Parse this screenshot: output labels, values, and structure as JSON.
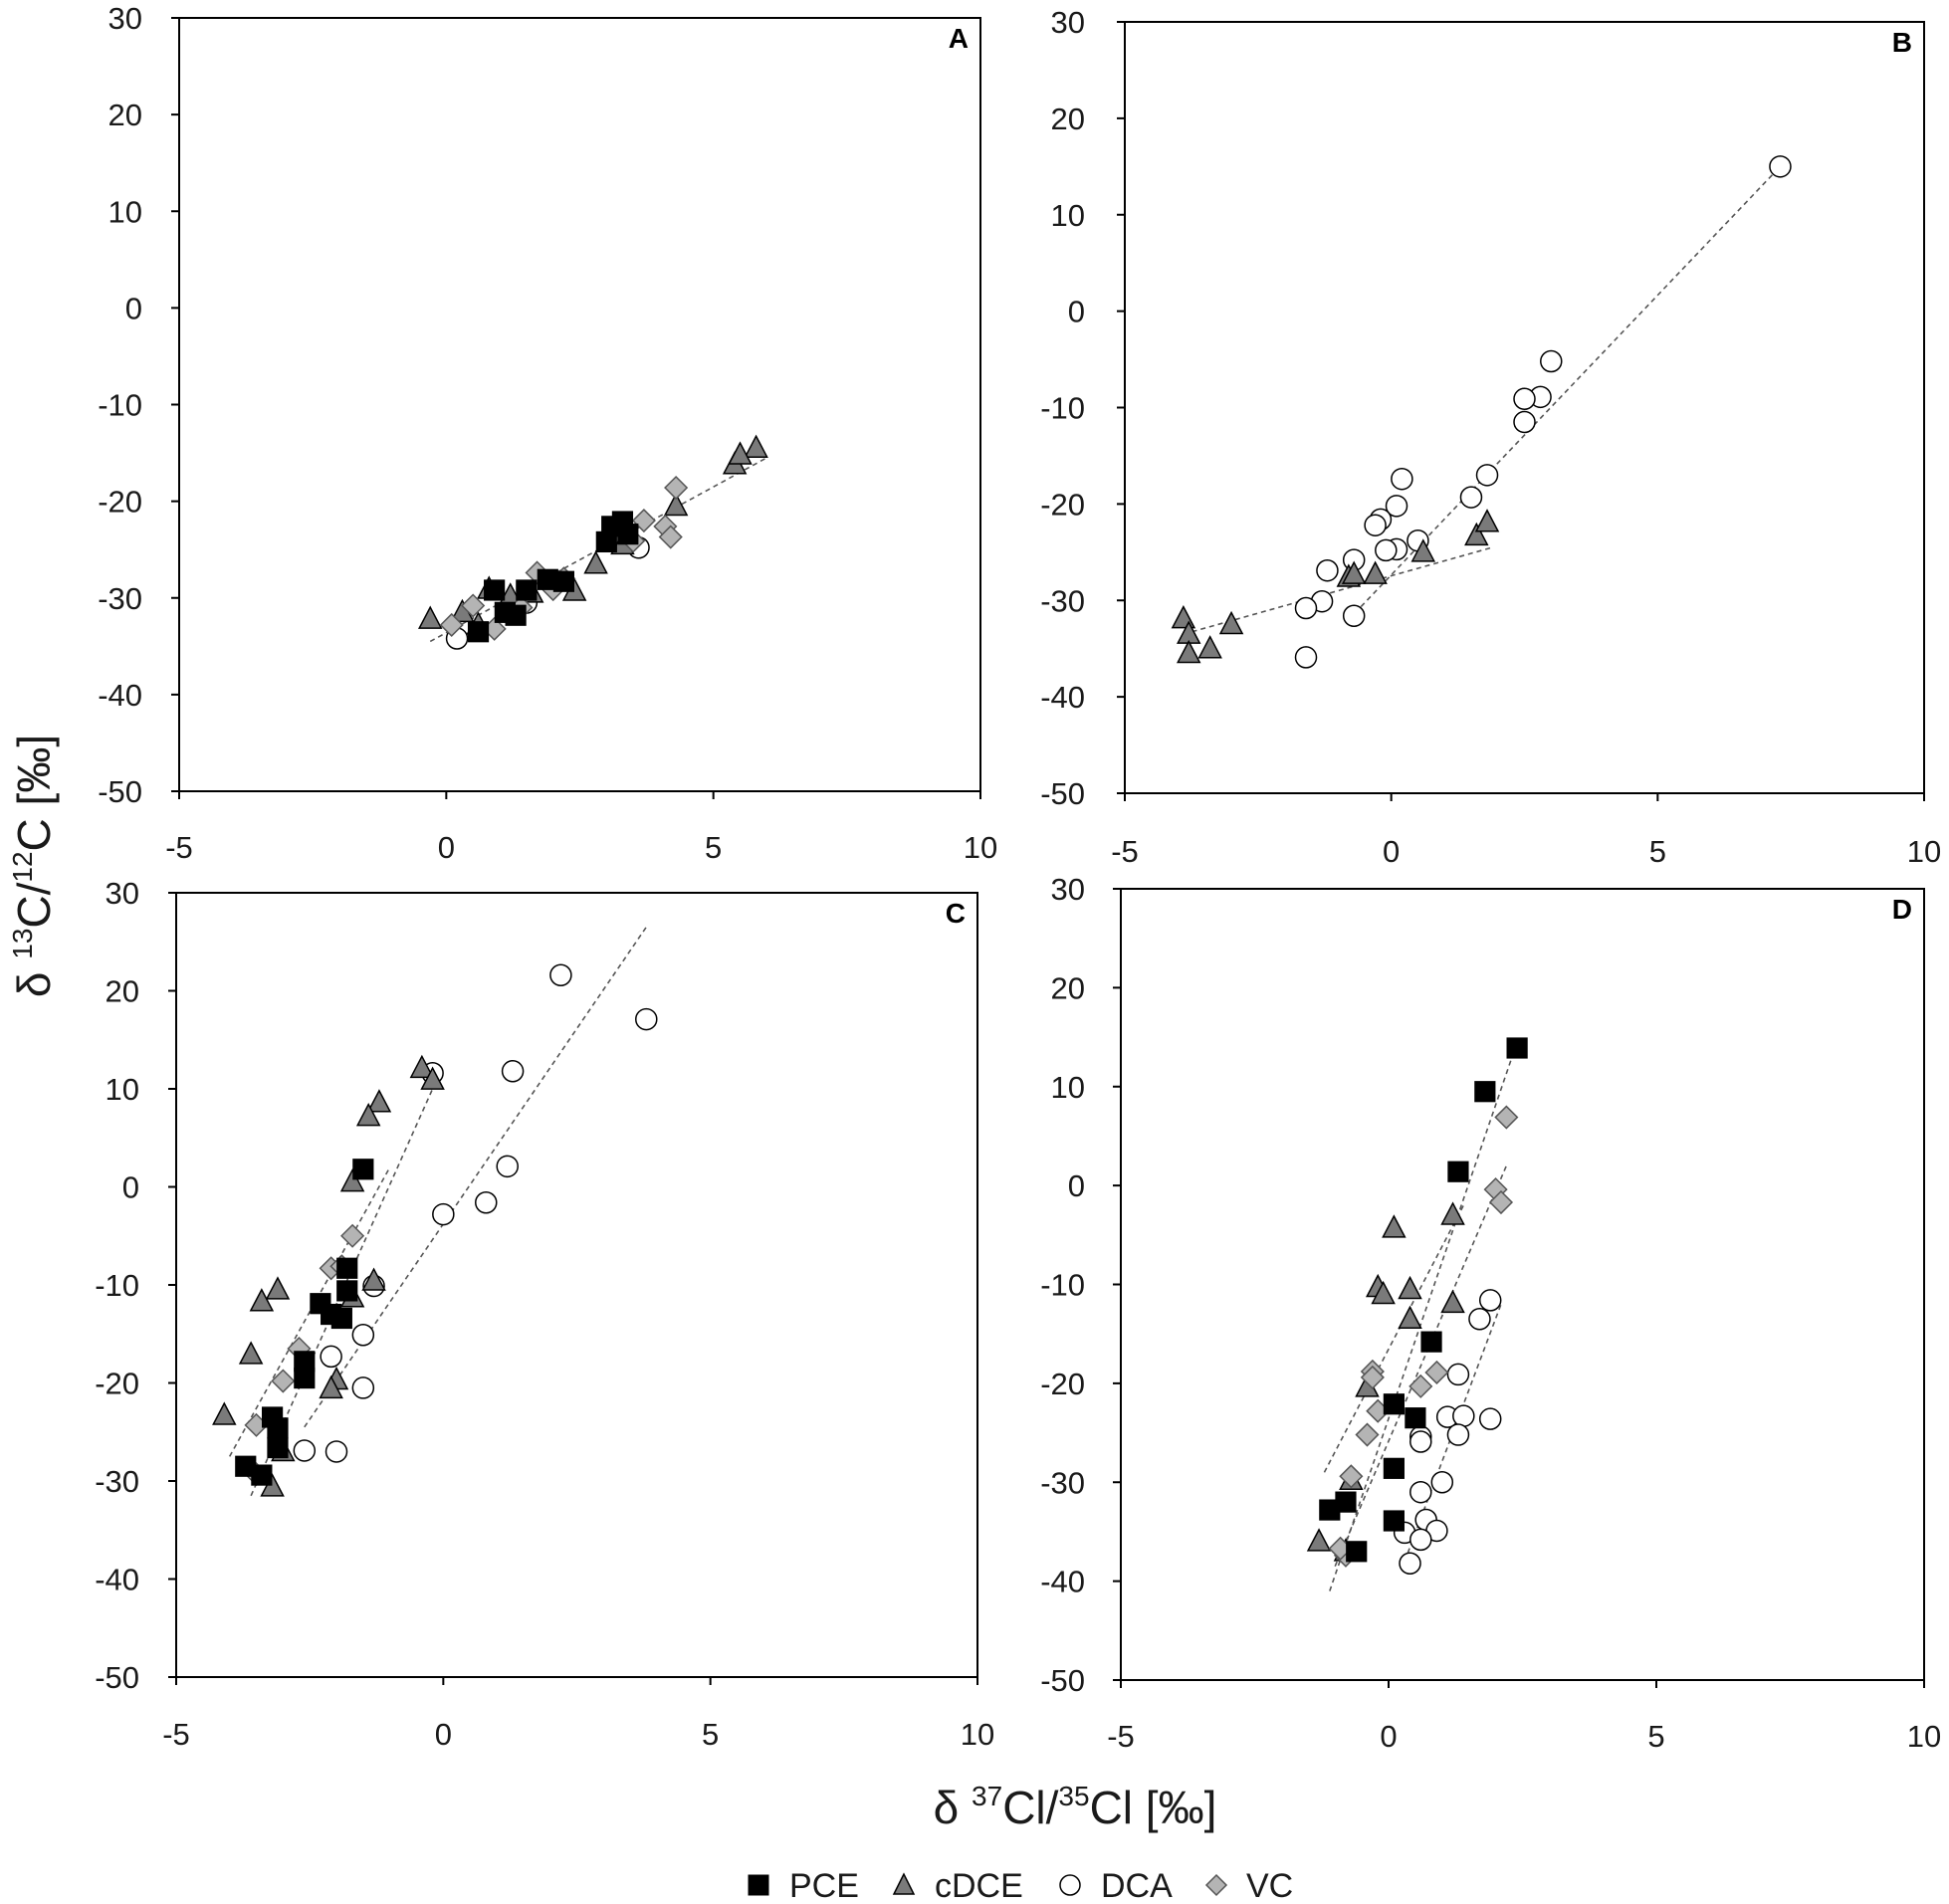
{
  "chart_data": [
    {
      "type": "scatter",
      "panel": "A",
      "xlim": [
        -5,
        10
      ],
      "ylim": [
        -50,
        30
      ],
      "x_ticks": [
        "-5",
        "0",
        "5",
        "10"
      ],
      "y_ticks": [
        "30",
        "20",
        "10",
        "0",
        "-10",
        "-20",
        "-30",
        "-40",
        "-50"
      ],
      "grid": false,
      "series": [
        {
          "name": "PCE",
          "points": [
            [
              0.6,
              -33.5
            ],
            [
              0.9,
              -29.2
            ],
            [
              1.1,
              -31.5
            ],
            [
              1.3,
              -31.8
            ],
            [
              1.5,
              -29.2
            ],
            [
              1.9,
              -28.1
            ],
            [
              2.2,
              -28.3
            ],
            [
              3.0,
              -24.2
            ],
            [
              3.1,
              -22.6
            ],
            [
              3.3,
              -22.1
            ],
            [
              3.4,
              -23.4
            ]
          ]
        },
        {
          "name": "cDCE",
          "points": [
            [
              -0.3,
              -32.2
            ],
            [
              0.3,
              -31.5
            ],
            [
              0.6,
              -32.8
            ],
            [
              0.8,
              -29.1
            ],
            [
              1.2,
              -29.8
            ],
            [
              1.6,
              -29.5
            ],
            [
              2.4,
              -29.3
            ],
            [
              2.8,
              -26.5
            ],
            [
              3.3,
              -24.5
            ],
            [
              4.3,
              -20.5
            ],
            [
              5.4,
              -16.2
            ],
            [
              5.8,
              -14.5
            ],
            [
              5.5,
              -15.2
            ]
          ]
        },
        {
          "name": "DCA",
          "points": [
            [
              0.2,
              -34.2
            ],
            [
              1.5,
              -30.5
            ],
            [
              3.6,
              -24.8
            ]
          ]
        },
        {
          "name": "VC",
          "points": [
            [
              0.1,
              -32.8
            ],
            [
              0.5,
              -30.8
            ],
            [
              0.9,
              -33.2
            ],
            [
              1.4,
              -31.0
            ],
            [
              1.7,
              -27.4
            ],
            [
              2.0,
              -29.1
            ],
            [
              2.2,
              -28.0
            ],
            [
              3.5,
              -24.1
            ],
            [
              3.7,
              -22.0
            ],
            [
              4.1,
              -22.6
            ],
            [
              4.2,
              -23.7
            ],
            [
              4.3,
              -18.6
            ]
          ]
        }
      ],
      "trendlines": [
        [
          -0.3,
          -34.5,
          6.0,
          -15.5
        ]
      ]
    },
    {
      "type": "scatter",
      "panel": "B",
      "xlim": [
        -5,
        10
      ],
      "ylim": [
        -50,
        30
      ],
      "x_ticks": [
        "-5",
        "0",
        "5",
        "10"
      ],
      "y_ticks": [
        "30",
        "20",
        "10",
        "0",
        "-10",
        "-20",
        "-30",
        "-40",
        "-50"
      ],
      "grid": false,
      "series": [
        {
          "name": "PCE",
          "points": []
        },
        {
          "name": "cDCE",
          "points": [
            [
              -3.9,
              -31.9
            ],
            [
              -3.8,
              -33.5
            ],
            [
              -3.8,
              -35.5
            ],
            [
              -3.4,
              -35.0
            ],
            [
              -3.0,
              -32.5
            ],
            [
              -0.8,
              -27.6
            ],
            [
              -0.7,
              -27.3
            ],
            [
              -0.3,
              -27.3
            ],
            [
              0.6,
              -25.0
            ],
            [
              1.6,
              -23.3
            ],
            [
              1.8,
              -21.9
            ]
          ]
        },
        {
          "name": "DCA",
          "points": [
            [
              7.3,
              15.0
            ],
            [
              3.0,
              -5.2
            ],
            [
              2.8,
              -8.9
            ],
            [
              2.5,
              -9.1
            ],
            [
              2.5,
              -11.5
            ],
            [
              1.8,
              -17.0
            ],
            [
              1.5,
              -19.3
            ],
            [
              0.2,
              -17.4
            ],
            [
              0.1,
              -20.2
            ],
            [
              -0.2,
              -21.6
            ],
            [
              -0.3,
              -22.2
            ],
            [
              0.5,
              -23.8
            ],
            [
              0.1,
              -24.7
            ],
            [
              -0.1,
              -24.8
            ],
            [
              -0.7,
              -25.8
            ],
            [
              -1.2,
              -26.9
            ],
            [
              -1.3,
              -30.1
            ],
            [
              -1.6,
              -30.8
            ],
            [
              -0.7,
              -31.6
            ],
            [
              -1.6,
              -35.9
            ]
          ]
        },
        {
          "name": "VC",
          "points": []
        }
      ],
      "trendlines": [
        [
          -3.9,
          -33.5,
          1.9,
          -24.5
        ],
        [
          -0.8,
          -32.0,
          7.3,
          15.0
        ]
      ]
    },
    {
      "type": "scatter",
      "panel": "C",
      "xlim": [
        -5,
        10
      ],
      "ylim": [
        -50,
        30
      ],
      "x_ticks": [
        "-5",
        "0",
        "5",
        "10"
      ],
      "y_ticks": [
        "30",
        "20",
        "10",
        "0",
        "-10",
        "-20",
        "-30",
        "-40",
        "-50"
      ],
      "grid": false,
      "series": [
        {
          "name": "PCE",
          "points": [
            [
              -1.5,
              1.8
            ],
            [
              -1.8,
              -8.3
            ],
            [
              -1.8,
              -10.6
            ],
            [
              -2.3,
              -11.9
            ],
            [
              -2.1,
              -13.0
            ],
            [
              -1.9,
              -13.4
            ],
            [
              -2.6,
              -17.8
            ],
            [
              -2.6,
              -19.5
            ],
            [
              -3.2,
              -23.5
            ],
            [
              -3.1,
              -24.6
            ],
            [
              -3.1,
              -26.6
            ],
            [
              -3.7,
              -28.5
            ],
            [
              -3.4,
              -29.4
            ]
          ]
        },
        {
          "name": "cDCE",
          "points": [
            [
              -0.4,
              12.1
            ],
            [
              -0.2,
              10.9
            ],
            [
              -1.2,
              8.6
            ],
            [
              -1.4,
              7.2
            ],
            [
              -1.7,
              0.5
            ],
            [
              -1.3,
              -9.6
            ],
            [
              -1.7,
              -11.3
            ],
            [
              -3.1,
              -10.5
            ],
            [
              -3.4,
              -11.7
            ],
            [
              -3.6,
              -17.1
            ],
            [
              -2.0,
              -19.7
            ],
            [
              -2.1,
              -20.6
            ],
            [
              -4.1,
              -23.3
            ],
            [
              -3.0,
              -27.0
            ],
            [
              -3.2,
              -30.6
            ]
          ]
        },
        {
          "name": "DCA",
          "points": [
            [
              2.2,
              21.6
            ],
            [
              3.8,
              17.1
            ],
            [
              1.3,
              11.8
            ],
            [
              -0.2,
              11.6
            ],
            [
              1.2,
              2.1
            ],
            [
              0.8,
              -1.6
            ],
            [
              0.0,
              -2.8
            ],
            [
              -1.3,
              -10.1
            ],
            [
              -1.5,
              -15.1
            ],
            [
              -2.1,
              -17.3
            ],
            [
              -1.5,
              -20.5
            ],
            [
              -2.6,
              -26.9
            ],
            [
              -2.0,
              -27.0
            ]
          ]
        },
        {
          "name": "VC",
          "points": [
            [
              -1.7,
              -5.0
            ],
            [
              -2.1,
              -8.3
            ],
            [
              -1.9,
              -8.1
            ],
            [
              -2.7,
              -16.5
            ],
            [
              -3.0,
              -19.8
            ],
            [
              -3.5,
              -24.3
            ],
            [
              -3.5,
              -29.3
            ]
          ]
        }
      ],
      "trendlines": [
        [
          -3.6,
          -31.5,
          -0.2,
          10.0
        ],
        [
          -4.0,
          -27.5,
          -1.0,
          2.0
        ],
        [
          -2.6,
          -24.5,
          3.8,
          26.5
        ]
      ]
    },
    {
      "type": "scatter",
      "panel": "D",
      "xlim": [
        -5,
        10
      ],
      "ylim": [
        -50,
        30
      ],
      "x_ticks": [
        "-5",
        "0",
        "5",
        "10"
      ],
      "y_ticks": [
        "30",
        "20",
        "10",
        "0",
        "-10",
        "-20",
        "-30",
        "-40",
        "-50"
      ],
      "grid": false,
      "series": [
        {
          "name": "PCE",
          "points": [
            [
              2.4,
              13.9
            ],
            [
              1.8,
              9.5
            ],
            [
              1.3,
              1.4
            ],
            [
              0.8,
              -15.8
            ],
            [
              0.1,
              -22.1
            ],
            [
              0.5,
              -23.5
            ],
            [
              0.1,
              -28.6
            ],
            [
              -0.8,
              -32.0
            ],
            [
              -1.1,
              -32.8
            ],
            [
              0.1,
              -33.9
            ],
            [
              -0.6,
              -37.0
            ]
          ]
        },
        {
          "name": "cDCE",
          "points": [
            [
              0.1,
              -4.3
            ],
            [
              1.2,
              -3.0
            ],
            [
              -0.2,
              -10.3
            ],
            [
              0.4,
              -10.5
            ],
            [
              -0.1,
              -11.0
            ],
            [
              1.2,
              -11.9
            ],
            [
              0.4,
              -13.5
            ],
            [
              -0.4,
              -20.4
            ],
            [
              -0.7,
              -29.8
            ],
            [
              -1.3,
              -36.0
            ],
            [
              -0.8,
              -37.0
            ]
          ]
        },
        {
          "name": "DCA",
          "points": [
            [
              1.9,
              -11.6
            ],
            [
              1.7,
              -13.5
            ],
            [
              1.3,
              -19.1
            ],
            [
              1.1,
              -23.4
            ],
            [
              1.4,
              -23.3
            ],
            [
              1.9,
              -23.6
            ],
            [
              1.3,
              -25.2
            ],
            [
              0.6,
              -25.4
            ],
            [
              0.6,
              -25.9
            ],
            [
              1.0,
              -30.0
            ],
            [
              0.6,
              -31.0
            ],
            [
              0.7,
              -33.8
            ],
            [
              0.9,
              -34.9
            ],
            [
              0.3,
              -35.1
            ],
            [
              0.6,
              -35.8
            ],
            [
              0.4,
              -38.2
            ]
          ]
        },
        {
          "name": "VC",
          "points": [
            [
              2.2,
              6.9
            ],
            [
              2.0,
              -0.4
            ],
            [
              2.1,
              -1.7
            ],
            [
              0.9,
              -18.9
            ],
            [
              0.6,
              -20.3
            ],
            [
              -0.3,
              -18.8
            ],
            [
              -0.3,
              -19.4
            ],
            [
              -0.2,
              -22.8
            ],
            [
              -0.4,
              -25.2
            ],
            [
              -0.7,
              -29.4
            ],
            [
              -0.8,
              -37.4
            ],
            [
              -0.9,
              -36.7
            ]
          ]
        }
      ],
      "trendlines": [
        [
          -1.2,
          -29.0,
          1.4,
          -2.0
        ],
        [
          -1.1,
          -41.0,
          2.4,
          14.5
        ],
        [
          -1.0,
          -38.5,
          2.2,
          2.0
        ],
        [
          0.3,
          -38.0,
          2.1,
          -12.0
        ]
      ]
    }
  ],
  "labels": {
    "panel_a": "A",
    "panel_b": "B",
    "panel_c": "C",
    "panel_d": "D",
    "x_title_prefix": "δ ",
    "x_title_sup1": "37",
    "x_title_mid": "Cl/",
    "x_title_sup2": "35",
    "x_title_suffix": "Cl [‰]",
    "y_title_prefix": "δ ",
    "y_title_sup1": "13",
    "y_title_mid": "C/",
    "y_title_sup2": "12",
    "y_title_suffix": "C [‰]"
  },
  "legend": [
    "PCE",
    "cDCE",
    "DCA",
    "VC"
  ],
  "colors": {
    "PCE": "#000000",
    "cDCE": "#7a7a7a",
    "DCA": "#ffffff",
    "VC": "#b4b4b4",
    "marker_stroke": "#000000",
    "trendline": "#555555"
  }
}
